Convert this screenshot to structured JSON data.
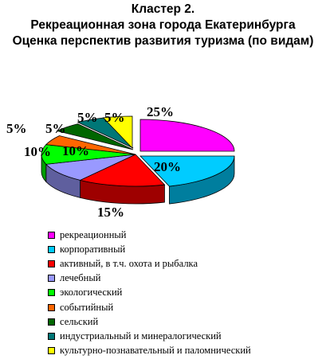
{
  "title_lines": [
    "Кластер 2.",
    "Рекреационная зона города Екатеринбурга",
    "Оценка перспектив развития туризма (по видам)"
  ],
  "chart_data": {
    "type": "pie",
    "title": "Кластер 2. Рекреационная зона города Екатеринбурга Оценка перспектив развития туризма (по видам)",
    "categories": [
      "рекреационный",
      "корпоративный",
      "активный, в т.ч. охота и рыбалка",
      "лечебный",
      "экологический",
      "событийный",
      "сельский",
      "индустриальный и минералогический",
      "культурно-познавательный и паломнический"
    ],
    "values": [
      25,
      20,
      15,
      10,
      10,
      5,
      5,
      5,
      5
    ],
    "labels": [
      "25%",
      "20%",
      "15%",
      "10%",
      "10%",
      "5%",
      "5%",
      "5%",
      "5%"
    ],
    "colors": [
      "#ff00ff",
      "#00ccff",
      "#ff0000",
      "#9999ff",
      "#00ff00",
      "#ff6600",
      "#006600",
      "#007777",
      "#ffff00"
    ],
    "style": "3d-exploded",
    "legend_position": "bottom-left"
  }
}
